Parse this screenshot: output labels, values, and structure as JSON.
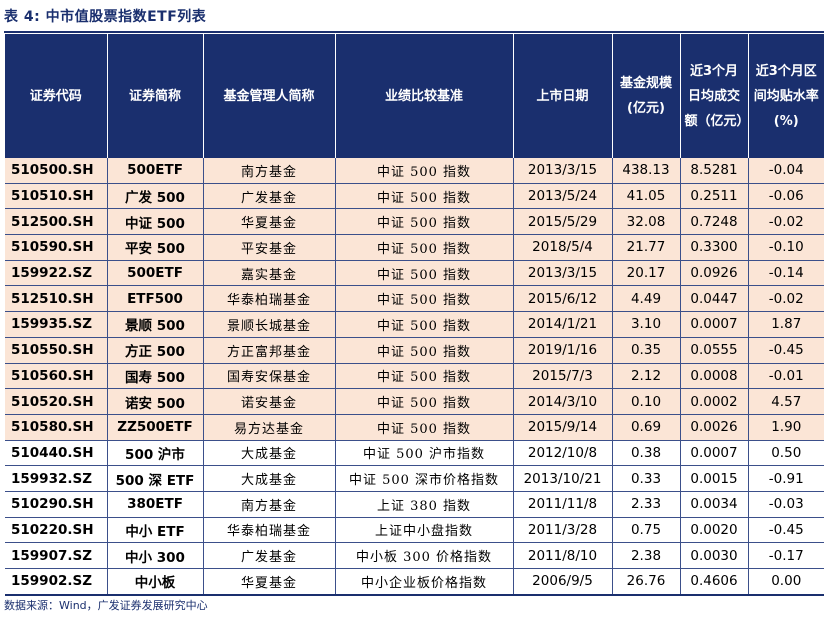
{
  "title": "表 4:  中市值股票指数ETF列表",
  "headers": [
    "证券代码",
    "证券简称",
    "基金管理人简称",
    "业绩比较基准",
    "上市日期",
    "基金规模(亿元)",
    "近3个月日均成交额（亿元）",
    "近3个月区间均贴水率(%)"
  ],
  "rows": [
    {
      "code": "510500.SH",
      "name": "500ETF",
      "manager": "南方基金",
      "benchmark": "中证 500 指数",
      "date": "2013/3/15",
      "size": "438.13",
      "turnover": "8.5281",
      "discount": "-0.04",
      "shade": "pink"
    },
    {
      "code": "510510.SH",
      "name": "广发 500",
      "manager": "广发基金",
      "benchmark": "中证 500 指数",
      "date": "2013/5/24",
      "size": "41.05",
      "turnover": "0.2511",
      "discount": "-0.06",
      "shade": "pink"
    },
    {
      "code": "512500.SH",
      "name": "中证 500",
      "manager": "华夏基金",
      "benchmark": "中证 500 指数",
      "date": "2015/5/29",
      "size": "32.08",
      "turnover": "0.7248",
      "discount": "-0.02",
      "shade": "pink"
    },
    {
      "code": "510590.SH",
      "name": "平安 500",
      "manager": "平安基金",
      "benchmark": "中证 500 指数",
      "date": "2018/5/4",
      "size": "21.77",
      "turnover": "0.3300",
      "discount": "-0.10",
      "shade": "pink"
    },
    {
      "code": "159922.SZ",
      "name": "500ETF",
      "manager": "嘉实基金",
      "benchmark": "中证 500 指数",
      "date": "2013/3/15",
      "size": "20.17",
      "turnover": "0.0926",
      "discount": "-0.14",
      "shade": "pink"
    },
    {
      "code": "512510.SH",
      "name": "ETF500",
      "manager": "华泰柏瑞基金",
      "benchmark": "中证 500 指数",
      "date": "2015/6/12",
      "size": "4.49",
      "turnover": "0.0447",
      "discount": "-0.02",
      "shade": "pink"
    },
    {
      "code": "159935.SZ",
      "name": "景顺 500",
      "manager": "景顺长城基金",
      "benchmark": "中证 500 指数",
      "date": "2014/1/21",
      "size": "3.10",
      "turnover": "0.0007",
      "discount": "1.87",
      "shade": "pink"
    },
    {
      "code": "510550.SH",
      "name": "方正 500",
      "manager": "方正富邦基金",
      "benchmark": "中证 500 指数",
      "date": "2019/1/16",
      "size": "0.35",
      "turnover": "0.0555",
      "discount": "-0.45",
      "shade": "pink"
    },
    {
      "code": "510560.SH",
      "name": "国寿 500",
      "manager": "国寿安保基金",
      "benchmark": "中证 500 指数",
      "date": "2015/7/3",
      "size": "2.12",
      "turnover": "0.0008",
      "discount": "-0.01",
      "shade": "pink"
    },
    {
      "code": "510520.SH",
      "name": "诺安 500",
      "manager": "诺安基金",
      "benchmark": "中证 500 指数",
      "date": "2014/3/10",
      "size": "0.10",
      "turnover": "0.0002",
      "discount": "4.57",
      "shade": "pink"
    },
    {
      "code": "510580.SH",
      "name": "ZZ500ETF",
      "manager": "易方达基金",
      "benchmark": "中证 500 指数",
      "date": "2015/9/14",
      "size": "0.69",
      "turnover": "0.0026",
      "discount": "1.90",
      "shade": "pink"
    },
    {
      "code": "510440.SH",
      "name": "500 沪市",
      "manager": "大成基金",
      "benchmark": "中证 500 沪市指数",
      "date": "2012/10/8",
      "size": "0.38",
      "turnover": "0.0007",
      "discount": "0.50",
      "shade": "white"
    },
    {
      "code": "159932.SZ",
      "name": "500 深 ETF",
      "manager": "大成基金",
      "benchmark": "中证 500 深市价格指数",
      "date": "2013/10/21",
      "size": "0.33",
      "turnover": "0.0015",
      "discount": "-0.91",
      "shade": "white"
    },
    {
      "code": "510290.SH",
      "name": "380ETF",
      "manager": "南方基金",
      "benchmark": "上证 380 指数",
      "date": "2011/11/8",
      "size": "2.33",
      "turnover": "0.0034",
      "discount": "-0.03",
      "shade": "white"
    },
    {
      "code": "510220.SH",
      "name": "中小 ETF",
      "manager": "华泰柏瑞基金",
      "benchmark": "上证中小盘指数",
      "date": "2011/3/28",
      "size": "0.75",
      "turnover": "0.0020",
      "discount": "-0.45",
      "shade": "white"
    },
    {
      "code": "159907.SZ",
      "name": "中小 300",
      "manager": "广发基金",
      "benchmark": "中小板 300 价格指数",
      "date": "2011/8/10",
      "size": "2.38",
      "turnover": "0.0030",
      "discount": "-0.17",
      "shade": "white"
    },
    {
      "code": "159902.SZ",
      "name": "中小板",
      "manager": "华夏基金",
      "benchmark": "中小企业板价格指数",
      "date": "2006/9/5",
      "size": "26.76",
      "turnover": "0.4606",
      "discount": "0.00",
      "shade": "white"
    }
  ],
  "source": "数据来源：Wind，广发证券发展研究中心"
}
